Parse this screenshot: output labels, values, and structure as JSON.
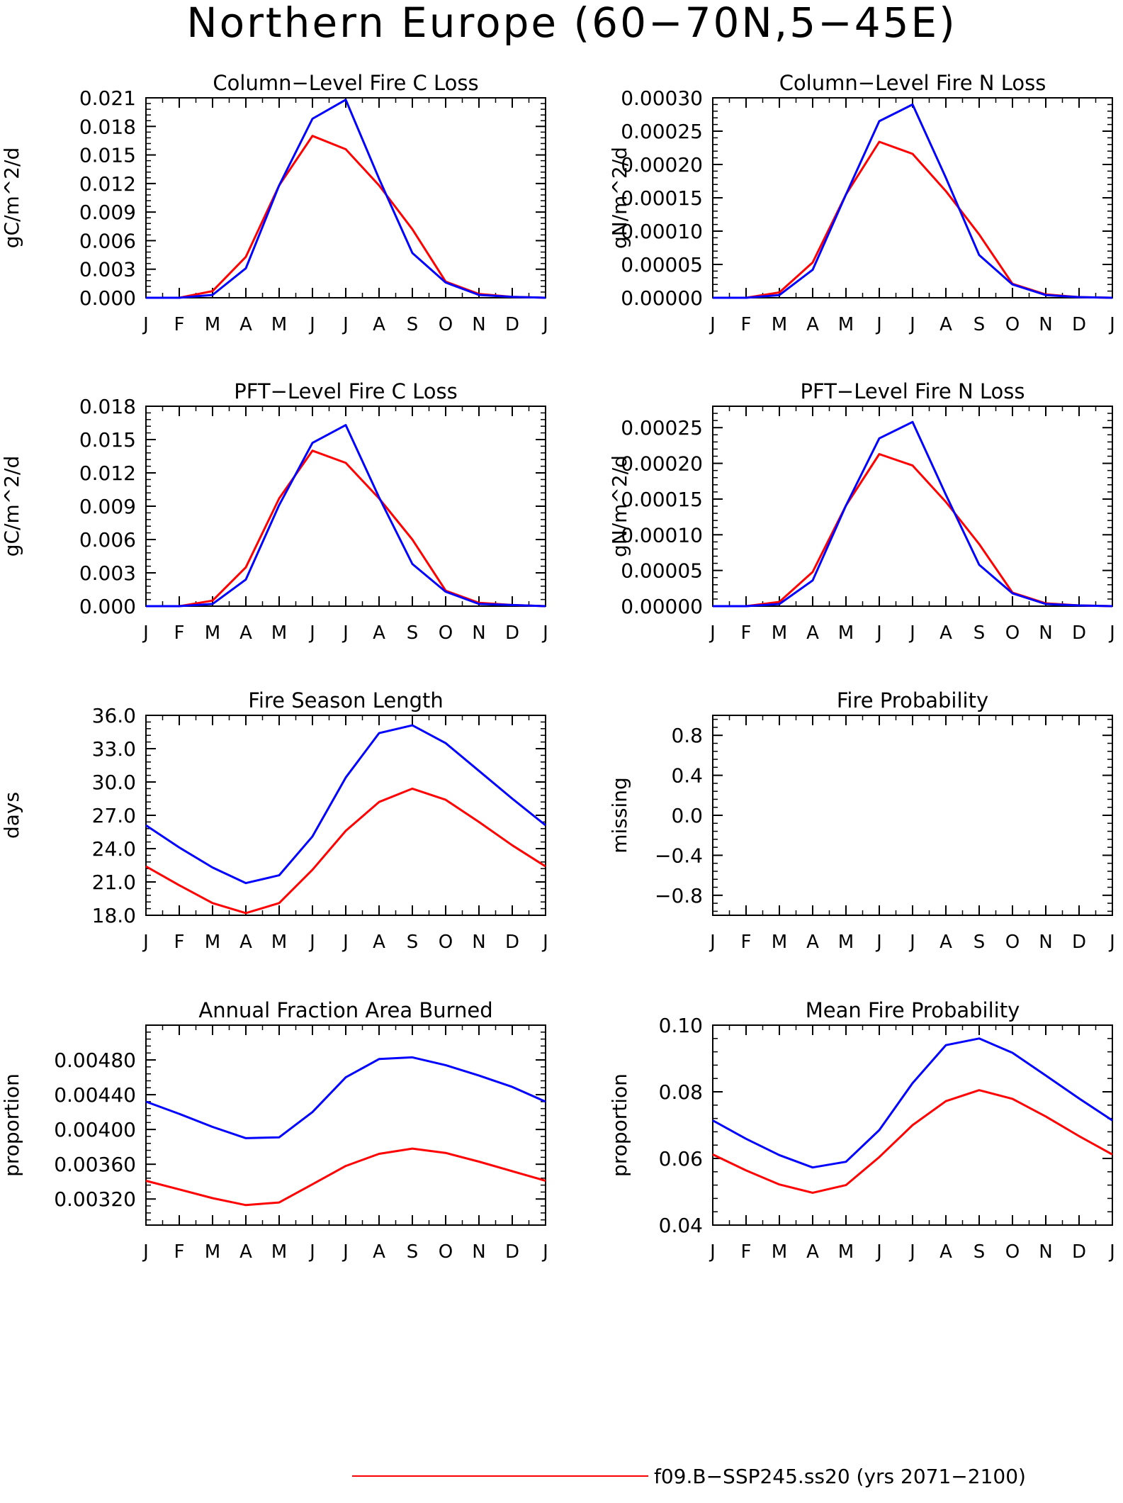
{
  "figure": {
    "title": "Northern Europe (60−70N,5−45E)"
  },
  "legend": {
    "entries": [
      {
        "label": "f09.B−SSP245.ss20 (yrs 2071−2100)",
        "color": "#ff0000"
      }
    ]
  },
  "series_colors": {
    "red": "#ff0000",
    "blue": "#0000ff"
  },
  "chart_data": [
    {
      "type": "line",
      "title": "Column−Level Fire C Loss",
      "ylabel": "gC/m^2/d",
      "categories": [
        "J",
        "F",
        "M",
        "A",
        "M",
        "J",
        "J",
        "A",
        "S",
        "O",
        "N",
        "D",
        "J"
      ],
      "ylim": [
        0,
        0.021
      ],
      "yticks": [
        0,
        0.003,
        0.006,
        0.009,
        0.012,
        0.015,
        0.018,
        0.021
      ],
      "ytick_labels": [
        "0.000",
        "0.003",
        "0.006",
        "0.009",
        "0.012",
        "0.015",
        "0.018",
        "0.021"
      ],
      "series": [
        {
          "color": "#ff0000",
          "values": [
            0.0,
            0.0,
            0.0007,
            0.0043,
            0.0118,
            0.017,
            0.0156,
            0.0118,
            0.0072,
            0.0017,
            0.0004,
            0.0001,
            0.0
          ]
        },
        {
          "color": "#0000ff",
          "values": [
            0.0,
            0.0,
            0.0003,
            0.0031,
            0.0118,
            0.0188,
            0.0208,
            0.0125,
            0.0047,
            0.0016,
            0.0003,
            0.0001,
            0.0
          ]
        }
      ]
    },
    {
      "type": "line",
      "title": "Column−Level Fire N Loss",
      "ylabel": "gN/m^2/d",
      "categories": [
        "J",
        "F",
        "M",
        "A",
        "M",
        "J",
        "J",
        "A",
        "S",
        "O",
        "N",
        "D",
        "J"
      ],
      "ylim": [
        0,
        0.0003
      ],
      "yticks": [
        0,
        5e-05,
        0.0001,
        0.00015,
        0.0002,
        0.00025,
        0.0003
      ],
      "ytick_labels": [
        "0.00000",
        "0.00005",
        "0.00010",
        "0.00015",
        "0.00020",
        "0.00025",
        "0.00030"
      ],
      "series": [
        {
          "color": "#ff0000",
          "values": [
            0.0,
            0.0,
            8e-06,
            5.3e-05,
            0.000155,
            0.000234,
            0.000216,
            0.00016,
            9.5e-05,
            2.1e-05,
            5e-06,
            1e-06,
            0.0
          ]
        },
        {
          "color": "#0000ff",
          "values": [
            0.0,
            0.0,
            4e-06,
            4.2e-05,
            0.000155,
            0.000265,
            0.00029,
            0.00018,
            6.4e-05,
            2e-05,
            4e-06,
            1e-06,
            0.0
          ]
        }
      ]
    },
    {
      "type": "line",
      "title": "PFT−Level Fire C Loss",
      "ylabel": "gC/m^2/d",
      "categories": [
        "J",
        "F",
        "M",
        "A",
        "M",
        "J",
        "J",
        "A",
        "S",
        "O",
        "N",
        "D",
        "J"
      ],
      "ylim": [
        0,
        0.018
      ],
      "yticks": [
        0,
        0.003,
        0.006,
        0.009,
        0.012,
        0.015,
        0.018
      ],
      "ytick_labels": [
        "0.000",
        "0.003",
        "0.006",
        "0.009",
        "0.012",
        "0.015",
        "0.018"
      ],
      "series": [
        {
          "color": "#ff0000",
          "values": [
            0.0,
            0.0,
            0.0005,
            0.0035,
            0.0097,
            0.014,
            0.0129,
            0.0097,
            0.006,
            0.0014,
            0.0003,
            0.0001,
            0.0
          ]
        },
        {
          "color": "#0000ff",
          "values": [
            0.0,
            0.0,
            0.0002,
            0.0024,
            0.0091,
            0.0147,
            0.0163,
            0.0098,
            0.0038,
            0.0013,
            0.0002,
            0.0001,
            0.0
          ]
        }
      ]
    },
    {
      "type": "line",
      "title": "PFT−Level Fire N Loss",
      "ylabel": "gN/m^2/d",
      "categories": [
        "J",
        "F",
        "M",
        "A",
        "M",
        "J",
        "J",
        "A",
        "S",
        "O",
        "N",
        "D",
        "J"
      ],
      "ylim": [
        0,
        0.00028
      ],
      "yticks": [
        0,
        5e-05,
        0.0001,
        0.00015,
        0.0002,
        0.00025
      ],
      "ytick_labels": [
        "0.00000",
        "0.00005",
        "0.00010",
        "0.00015",
        "0.00020",
        "0.00025"
      ],
      "series": [
        {
          "color": "#ff0000",
          "values": [
            0.0,
            0.0,
            6e-06,
            4.8e-05,
            0.000141,
            0.000213,
            0.000197,
            0.000146,
            8.7e-05,
            1.9e-05,
            4e-06,
            1e-06,
            0.0
          ]
        },
        {
          "color": "#0000ff",
          "values": [
            0.0,
            0.0,
            3e-06,
            3.6e-05,
            0.000141,
            0.000235,
            0.000258,
            0.000156,
            5.8e-05,
            1.8e-05,
            3e-06,
            1e-06,
            0.0
          ]
        }
      ]
    },
    {
      "type": "line",
      "title": "Fire Season Length",
      "ylabel": "days",
      "categories": [
        "J",
        "F",
        "M",
        "A",
        "M",
        "J",
        "J",
        "A",
        "S",
        "O",
        "N",
        "D",
        "J"
      ],
      "ylim": [
        18,
        36
      ],
      "yticks": [
        18,
        21,
        24,
        27,
        30,
        33,
        36
      ],
      "ytick_labels": [
        "18.0",
        "21.0",
        "24.0",
        "27.0",
        "30.0",
        "33.0",
        "36.0"
      ],
      "series": [
        {
          "color": "#ff0000",
          "values": [
            22.4,
            20.7,
            19.1,
            18.2,
            19.1,
            22.1,
            25.6,
            28.2,
            29.4,
            28.4,
            26.4,
            24.3,
            22.4
          ]
        },
        {
          "color": "#0000ff",
          "values": [
            26.1,
            24.1,
            22.3,
            20.9,
            21.6,
            25.1,
            30.4,
            34.4,
            35.1,
            33.5,
            31.0,
            28.5,
            26.1
          ]
        }
      ]
    },
    {
      "type": "line",
      "title": "Fire Probability",
      "ylabel": "missing",
      "categories": [
        "J",
        "F",
        "M",
        "A",
        "M",
        "J",
        "J",
        "A",
        "S",
        "O",
        "N",
        "D",
        "J"
      ],
      "ylim": [
        -1,
        1
      ],
      "yticks": [
        -0.8,
        -0.4,
        0,
        0.4,
        0.8
      ],
      "ytick_labels": [
        "−0.8",
        "−0.4",
        "0.0",
        "0.4",
        "0.8"
      ],
      "series": []
    },
    {
      "type": "line",
      "title": "Annual Fraction Area Burned",
      "ylabel": "proportion",
      "categories": [
        "J",
        "F",
        "M",
        "A",
        "M",
        "J",
        "J",
        "A",
        "S",
        "O",
        "N",
        "D",
        "J"
      ],
      "ylim": [
        0.0029,
        0.0052
      ],
      "yticks": [
        0.0032,
        0.0036,
        0.004,
        0.0044,
        0.0048
      ],
      "ytick_labels": [
        "0.00320",
        "0.00360",
        "0.00400",
        "0.00440",
        "0.00480"
      ],
      "series": [
        {
          "color": "#ff0000",
          "values": [
            0.00341,
            0.00331,
            0.00321,
            0.00313,
            0.00316,
            0.00337,
            0.00358,
            0.00372,
            0.00378,
            0.00373,
            0.00363,
            0.00352,
            0.00341
          ]
        },
        {
          "color": "#0000ff",
          "values": [
            0.00432,
            0.00418,
            0.00403,
            0.0039,
            0.00391,
            0.0042,
            0.0046,
            0.00481,
            0.00483,
            0.00474,
            0.00462,
            0.00449,
            0.00432
          ]
        }
      ]
    },
    {
      "type": "line",
      "title": "Mean Fire Probability",
      "ylabel": "proportion",
      "categories": [
        "J",
        "F",
        "M",
        "A",
        "M",
        "J",
        "J",
        "A",
        "S",
        "O",
        "N",
        "D",
        "J"
      ],
      "ylim": [
        0.04,
        0.1
      ],
      "yticks": [
        0.04,
        0.06,
        0.08,
        0.1
      ],
      "ytick_labels": [
        "0.04",
        "0.06",
        "0.08",
        "0.10"
      ],
      "series": [
        {
          "color": "#ff0000",
          "values": [
            0.0612,
            0.0564,
            0.0522,
            0.0497,
            0.052,
            0.0604,
            0.07,
            0.0772,
            0.0805,
            0.0779,
            0.0726,
            0.0667,
            0.0612
          ]
        },
        {
          "color": "#0000ff",
          "values": [
            0.0714,
            0.0659,
            0.061,
            0.0573,
            0.059,
            0.0685,
            0.0826,
            0.094,
            0.096,
            0.0917,
            0.0849,
            0.078,
            0.0714
          ]
        }
      ]
    }
  ]
}
